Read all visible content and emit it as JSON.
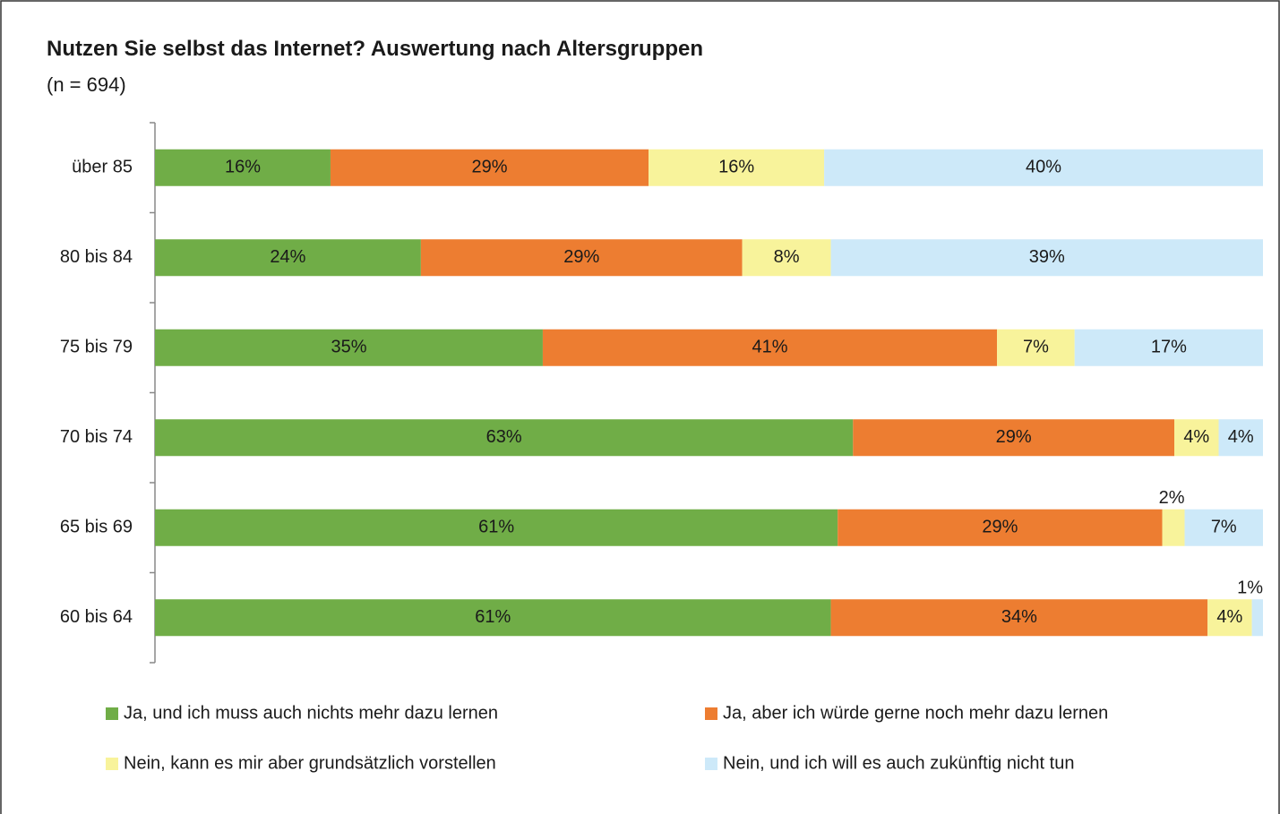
{
  "chart_data": {
    "type": "bar",
    "orientation": "horizontal",
    "stacked": "percent",
    "title": "Nutzen Sie selbst das Internet? Auswertung nach Altersgruppen",
    "subtitle": "(n = 694)",
    "categories": [
      "über 85",
      "80 bis 84",
      "75 bis 79",
      "70 bis 74",
      "65 bis 69",
      "60 bis 64"
    ],
    "series": [
      {
        "name": "Ja, und ich muss auch nichts mehr dazu lernen",
        "color": "#70ad47",
        "values": [
          16,
          24,
          35,
          63,
          61,
          61
        ],
        "value_labels": [
          "16%",
          "24%",
          "35%",
          "63%",
          "61%",
          "61%"
        ]
      },
      {
        "name": "Ja, aber ich würde gerne noch mehr dazu lernen",
        "color": "#ed7d31",
        "values": [
          29,
          29,
          41,
          29,
          29,
          34
        ],
        "value_labels": [
          "29%",
          "29%",
          "41%",
          "29%",
          "29%",
          "34%"
        ]
      },
      {
        "name": "Nein, kann es mir aber grundsätzlich vorstellen",
        "color": "#f8f39b",
        "values": [
          16,
          8,
          7,
          4,
          2,
          4
        ],
        "value_labels": [
          "16%",
          "8%",
          "7%",
          "4%",
          "2%",
          "4%"
        ]
      },
      {
        "name": "Nein, und ich will es auch zukünftig nicht tun",
        "color": "#cde9f9",
        "values": [
          40,
          39,
          17,
          4,
          7,
          1
        ],
        "value_labels": [
          "40%",
          "39%",
          "17%",
          "4%",
          "7%",
          "1%"
        ]
      }
    ],
    "legend": "bottom"
  }
}
